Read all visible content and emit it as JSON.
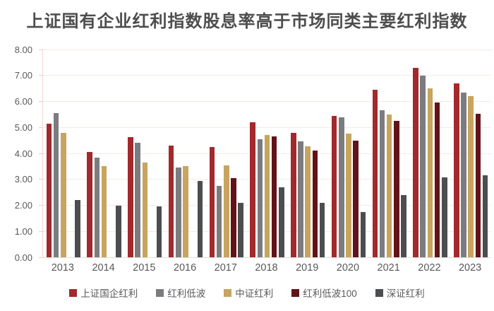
{
  "title": "上证国有企业红利指数股息率高于市场同类主要红利指数",
  "axis": {
    "ytick_labels": [
      "8.00",
      "7.00",
      "6.00",
      "5.00",
      "4.00",
      "3.00",
      "2.00",
      "1.00",
      "0.00"
    ],
    "text_color": "#595959",
    "gridline_color": "#f7eae5",
    "axisline_color": "#f0d9d3"
  },
  "chart_data": {
    "type": "bar",
    "title": "上证国有企业红利指数股息率高于市场同类主要红利指数",
    "xlabel": "",
    "ylabel": "",
    "ylim": [
      0,
      8
    ],
    "ytick_step": 1,
    "grid": true,
    "legend_position": "bottom",
    "categories": [
      "2013",
      "2014",
      "2015",
      "2016",
      "2017",
      "2018",
      "2019",
      "2020",
      "2021",
      "2022",
      "2023"
    ],
    "series": [
      {
        "name": "上证国企红利",
        "color": "#a2292c",
        "values": [
          5.15,
          4.05,
          4.62,
          4.3,
          4.25,
          5.2,
          4.8,
          5.45,
          6.45,
          7.3,
          6.7
        ]
      },
      {
        "name": "红利低波",
        "color": "#7b7c7f",
        "values": [
          5.55,
          3.85,
          4.4,
          3.45,
          2.75,
          4.55,
          4.45,
          5.4,
          5.65,
          7.0,
          6.35
        ]
      },
      {
        "name": "中证红利",
        "color": "#c7a45f",
        "values": [
          4.8,
          3.5,
          3.65,
          3.5,
          3.55,
          4.72,
          4.28,
          4.75,
          5.5,
          6.5,
          6.2
        ]
      },
      {
        "name": "红利低波100",
        "color": "#621319",
        "values": [
          null,
          null,
          null,
          null,
          3.05,
          4.65,
          4.1,
          4.48,
          5.25,
          5.95,
          5.52
        ]
      },
      {
        "name": "深证红利",
        "color": "#4c4d4f",
        "values": [
          2.2,
          2.0,
          1.97,
          2.95,
          2.1,
          2.7,
          2.1,
          1.75,
          2.4,
          3.08,
          3.15
        ]
      }
    ]
  }
}
